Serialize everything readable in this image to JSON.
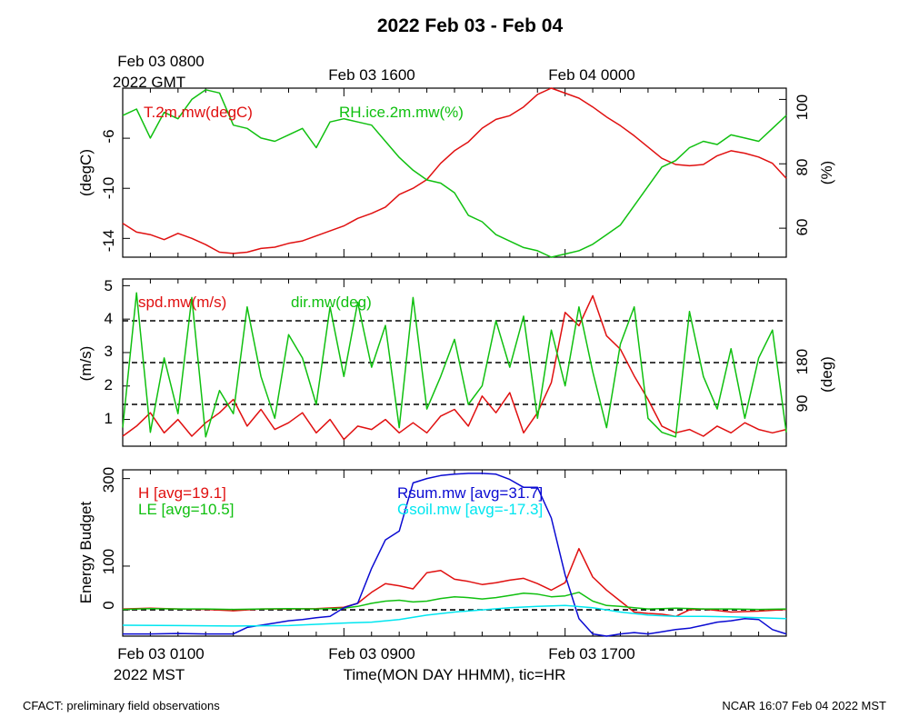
{
  "title": "2022 Feb 03 - Feb 04",
  "top_axis": {
    "ticks": [
      "Feb 03 0800",
      "Feb 03 1600",
      "Feb 04 0000"
    ],
    "sublabel": "2022 GMT"
  },
  "bottom_axis": {
    "ticks": [
      "Feb 03 0100",
      "Feb 03 0900",
      "Feb 03 1700"
    ],
    "sublabel": "2022 MST",
    "label": "Time(MON DAY HHMM), tic=HR"
  },
  "footer": {
    "left": "CFACT: preliminary field observations",
    "right": "NCAR 16:07 Feb 04 2022 MST"
  },
  "colors": {
    "red": "#e01010",
    "green": "#10c010",
    "blue": "#0a0ad2",
    "cyan": "#00e6f0",
    "black": "#000000"
  },
  "chart_data": [
    {
      "type": "line",
      "panel": "temperature_rh",
      "xrange_hours": [
        0,
        24
      ],
      "left_axis": {
        "label": "(degC)",
        "ylim": [
          -15.5,
          -2
        ],
        "ticks": [
          "-6",
          "-10",
          "-14"
        ]
      },
      "right_axis": {
        "label": "(%)",
        "ylim": [
          51,
          103.5
        ],
        "ticks": [
          "100",
          "80",
          "60"
        ]
      },
      "series": [
        {
          "name": "T.2m.mw(degC)",
          "color": "red",
          "axis": "left",
          "x": [
            0,
            0.5,
            1,
            1.5,
            2,
            2.5,
            3,
            3.5,
            4,
            4.5,
            5,
            5.5,
            6,
            6.5,
            7,
            7.5,
            8,
            8.5,
            9,
            9.5,
            10,
            10.5,
            11,
            11.5,
            12,
            12.5,
            13,
            13.5,
            14,
            14.5,
            15,
            15.5,
            16,
            16.5,
            17,
            17.5,
            18,
            18.5,
            19,
            19.5,
            20,
            20.5,
            21,
            21.5,
            22,
            22.5,
            23,
            23.5,
            24
          ],
          "values": [
            -12.8,
            -13.5,
            -13.7,
            -14.1,
            -13.6,
            -14,
            -14.5,
            -15.1,
            -15.2,
            -15.1,
            -14.8,
            -14.7,
            -14.4,
            -14.2,
            -13.8,
            -13.4,
            -13,
            -12.4,
            -12,
            -11.5,
            -10.5,
            -10,
            -9.3,
            -8,
            -7,
            -6.3,
            -5.2,
            -4.5,
            -4.2,
            -3.5,
            -2.5,
            -2,
            -2.4,
            -2.8,
            -3.5,
            -4.3,
            -5,
            -5.8,
            -6.7,
            -7.6,
            -8.1,
            -8.2,
            -8.1,
            -7.4,
            -7,
            -7.2,
            -7.5,
            -8,
            -9.2
          ]
        },
        {
          "name": "RH.ice.2m.mw(%)",
          "color": "green",
          "axis": "right",
          "x": [
            0,
            0.5,
            1,
            1.5,
            2,
            2.5,
            3,
            3.5,
            4,
            4.5,
            5,
            5.5,
            6,
            6.5,
            7,
            7.5,
            8,
            8.5,
            9,
            9.5,
            10,
            10.5,
            11,
            11.5,
            12,
            12.5,
            13,
            13.5,
            14,
            14.5,
            15,
            15.5,
            16,
            16.5,
            17,
            17.5,
            18,
            18.5,
            19,
            19.5,
            20,
            20.5,
            21,
            21.5,
            22,
            22.5,
            23,
            23.5,
            24
          ],
          "values": [
            95,
            97,
            88,
            96,
            94,
            100,
            103,
            102,
            92,
            91,
            88,
            87,
            89,
            91,
            85,
            93,
            94,
            93,
            92,
            87,
            82,
            78,
            75,
            74,
            71,
            64,
            62,
            58,
            56,
            54,
            53,
            51,
            52,
            53,
            55,
            58,
            61,
            67,
            73,
            79,
            81,
            85,
            87,
            86,
            89,
            88,
            87,
            91,
            95
          ]
        }
      ]
    },
    {
      "type": "line",
      "panel": "wind",
      "xrange_hours": [
        0,
        24
      ],
      "left_axis": {
        "label": "(m/s)",
        "ylim": [
          0.2,
          5.2
        ],
        "ticks": [
          "1",
          "2",
          "3",
          "4",
          "5"
        ]
      },
      "right_axis": {
        "label": "(deg)",
        "ylim": [
          0,
          360
        ],
        "ticks": [
          "90",
          "180"
        ]
      },
      "reference_lines_deg": [
        90,
        180,
        270
      ],
      "series": [
        {
          "name": "spd.mw(m/s)",
          "color": "red",
          "axis": "left",
          "x": [
            0,
            0.5,
            1,
            1.5,
            2,
            2.5,
            3,
            3.5,
            4,
            4.5,
            5,
            5.5,
            6,
            6.5,
            7,
            7.5,
            8,
            8.5,
            9,
            9.5,
            10,
            10.5,
            11,
            11.5,
            12,
            12.5,
            13,
            13.5,
            14,
            14.5,
            15,
            15.5,
            16,
            16.5,
            17,
            17.5,
            18,
            18.5,
            19,
            19.5,
            20,
            20.5,
            21,
            21.5,
            22,
            22.5,
            23,
            23.5,
            24
          ],
          "values": [
            0.5,
            0.8,
            1.2,
            0.6,
            1,
            0.5,
            0.9,
            1.2,
            1.6,
            0.8,
            1.3,
            0.7,
            0.9,
            1.2,
            0.6,
            1,
            0.4,
            0.8,
            0.7,
            1,
            0.6,
            0.9,
            0.6,
            1.1,
            1.3,
            0.8,
            1.7,
            1.2,
            1.8,
            0.6,
            1.2,
            2.1,
            4.2,
            3.8,
            4.7,
            3.5,
            3.1,
            2.3,
            1.6,
            0.8,
            0.6,
            0.7,
            0.5,
            0.8,
            0.6,
            0.9,
            0.7,
            0.6,
            0.7
          ]
        },
        {
          "name": "dir.mw(deg)",
          "color": "green",
          "axis": "right",
          "x": [
            0,
            0.5,
            1,
            1.5,
            2,
            2.5,
            3,
            3.5,
            4,
            4.5,
            5,
            5.5,
            6,
            6.5,
            7,
            7.5,
            8,
            8.5,
            9,
            9.5,
            10,
            10.5,
            11,
            11.5,
            12,
            12.5,
            13,
            13.5,
            14,
            14.5,
            15,
            15.5,
            16,
            16.5,
            17,
            17.5,
            18,
            18.5,
            19,
            19.5,
            20,
            20.5,
            21,
            21.5,
            22,
            22.5,
            23,
            23.5,
            24
          ],
          "values": [
            40,
            330,
            30,
            190,
            70,
            320,
            20,
            120,
            70,
            300,
            150,
            60,
            240,
            190,
            90,
            300,
            150,
            310,
            170,
            260,
            40,
            320,
            80,
            150,
            230,
            90,
            130,
            270,
            170,
            280,
            60,
            250,
            130,
            300,
            160,
            40,
            220,
            300,
            60,
            30,
            20,
            290,
            150,
            80,
            210,
            60,
            190,
            250,
            30
          ]
        }
      ]
    },
    {
      "type": "line",
      "panel": "energy_budget",
      "xrange_hours": [
        0,
        24
      ],
      "left_axis": {
        "label": "Energy Budget",
        "ylim": [
          -60,
          320
        ],
        "ticks": [
          "0",
          "100",
          "300"
        ]
      },
      "zero_line": 0,
      "series": [
        {
          "name": "H",
          "avg": "19.1",
          "color": "red",
          "x": [
            0,
            1,
            2,
            3,
            4,
            5,
            6,
            7,
            8,
            8.5,
            9,
            9.5,
            10,
            10.5,
            11,
            11.5,
            12,
            12.5,
            13,
            13.5,
            14,
            14.5,
            15,
            15.5,
            16,
            16.5,
            17,
            17.5,
            18,
            18.5,
            19,
            19.5,
            20,
            20.5,
            21,
            22,
            23,
            24
          ],
          "values": [
            2,
            4,
            2,
            1,
            -2,
            2,
            2,
            3,
            6,
            15,
            40,
            60,
            55,
            48,
            85,
            90,
            70,
            65,
            58,
            62,
            68,
            72,
            60,
            45,
            62,
            140,
            75,
            45,
            20,
            -5,
            -8,
            -10,
            -15,
            0,
            2,
            -5,
            -3,
            1
          ]
        },
        {
          "name": "LE",
          "avg": "10.5",
          "color": "green",
          "x": [
            0,
            1,
            2,
            3,
            4,
            5,
            6,
            7,
            8,
            8.5,
            9,
            9.5,
            10,
            10.5,
            11,
            11.5,
            12,
            12.5,
            13,
            13.5,
            14,
            14.5,
            15,
            15.5,
            16,
            16.5,
            17,
            17.5,
            18,
            18.5,
            19,
            19.5,
            20,
            21,
            22,
            23,
            24
          ],
          "values": [
            1,
            3,
            2,
            2,
            1,
            2,
            3,
            2,
            4,
            8,
            15,
            20,
            22,
            18,
            20,
            26,
            30,
            28,
            25,
            28,
            33,
            38,
            36,
            30,
            32,
            40,
            20,
            10,
            8,
            5,
            2,
            3,
            4,
            2,
            2,
            1,
            2
          ]
        },
        {
          "name": "Rsum.mw",
          "avg": "31.7",
          "color": "blue",
          "x": [
            0,
            1,
            2,
            3,
            4,
            4.5,
            5,
            5.5,
            6,
            6.5,
            7,
            7.5,
            8,
            8.5,
            9,
            9.5,
            10,
            10.5,
            11,
            11.5,
            12,
            12.5,
            13,
            13.5,
            14,
            14.5,
            15,
            15.5,
            16,
            16.5,
            17,
            17.5,
            18,
            18.5,
            19,
            19.5,
            20,
            20.5,
            21,
            21.5,
            22,
            22.5,
            23,
            23.5,
            24
          ],
          "values": [
            -55,
            -55,
            -54,
            -55,
            -55,
            -40,
            -35,
            -30,
            -25,
            -22,
            -18,
            -15,
            5,
            15,
            95,
            160,
            180,
            290,
            300,
            307,
            310,
            312,
            312,
            310,
            298,
            280,
            280,
            210,
            80,
            -20,
            -55,
            -60,
            -55,
            -52,
            -55,
            -50,
            -45,
            -42,
            -35,
            -28,
            -25,
            -20,
            -22,
            -45,
            -55
          ]
        },
        {
          "name": "Gsoil.mw",
          "avg": "-17.3",
          "color": "cyan",
          "x": [
            0,
            2,
            4,
            6,
            8,
            9,
            10,
            11,
            12,
            13,
            14,
            15,
            16,
            17,
            18,
            19,
            20,
            21,
            22,
            23,
            24
          ],
          "values": [
            -35,
            -36,
            -37,
            -36,
            -30,
            -28,
            -22,
            -12,
            -5,
            0,
            5,
            8,
            10,
            5,
            -5,
            -12,
            -15,
            -15,
            -16,
            -18,
            -20
          ]
        }
      ]
    }
  ]
}
